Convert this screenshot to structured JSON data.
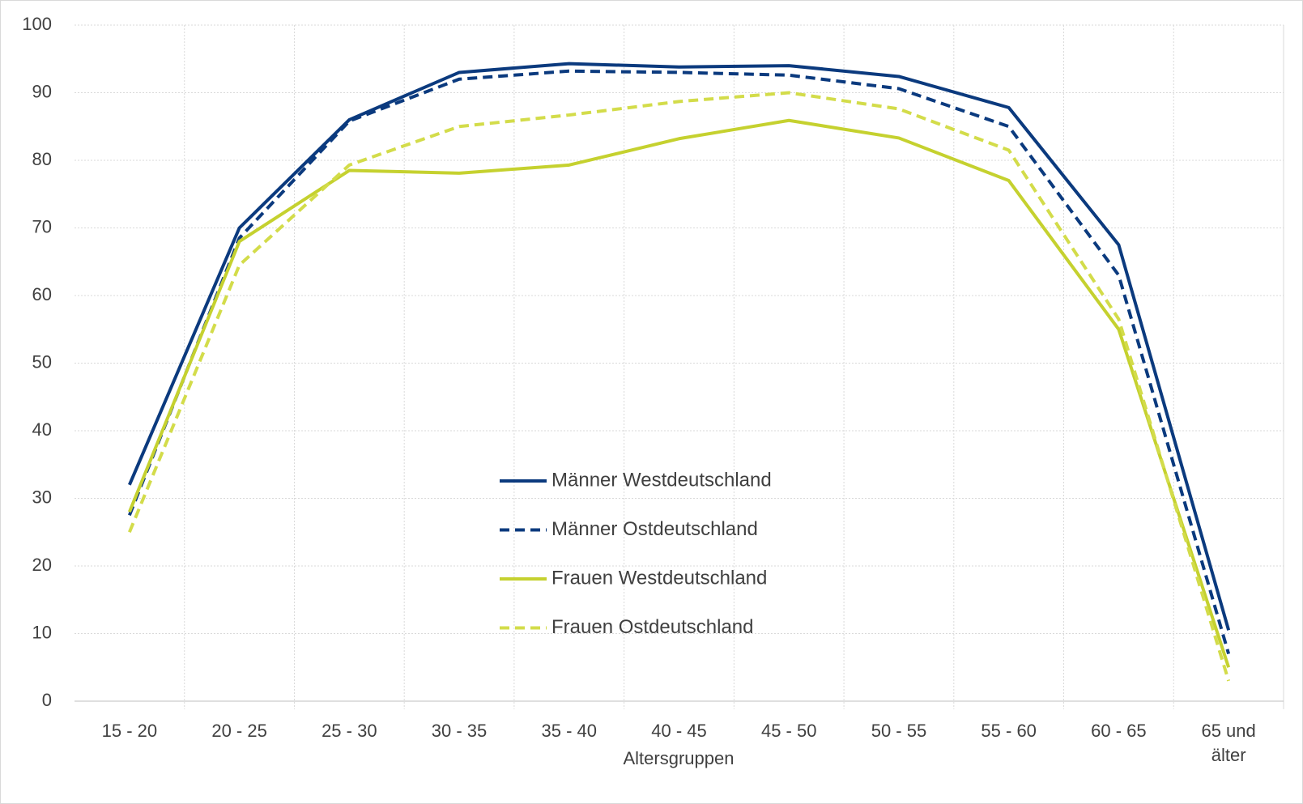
{
  "chart_data": {
    "type": "line",
    "x_label": "Altersgruppen",
    "categories": [
      "15 - 20",
      "20 - 25",
      "25 - 30",
      "30 - 35",
      "35 - 40",
      "40 - 45",
      "45 - 50",
      "50 - 55",
      "55 - 60",
      "60 - 65",
      "65 und älter"
    ],
    "series": [
      {
        "name": "Männer Westdeutschland",
        "color": "#0b3a7e",
        "linestyle": "solid",
        "values": [
          32,
          70,
          86,
          93,
          94.3,
          93.8,
          94,
          92.4,
          87.8,
          67.5,
          10.5
        ]
      },
      {
        "name": "Männer Ostdeutschland",
        "color": "#0b3a7e",
        "linestyle": "dashed",
        "values": [
          27.5,
          68.5,
          85.8,
          92,
          93.2,
          93,
          92.6,
          90.6,
          85,
          63,
          7
        ]
      },
      {
        "name": "Frauen Westdeutschland",
        "color": "#c5d12f",
        "linestyle": "solid",
        "values": [
          28,
          68,
          78.5,
          78.1,
          79.3,
          83.2,
          85.9,
          83.3,
          77,
          55,
          5
        ]
      },
      {
        "name": "Frauen Ostdeutschland",
        "color": "#d3dc4a",
        "linestyle": "dashed",
        "values": [
          25,
          64.5,
          79.3,
          85,
          86.7,
          88.7,
          90,
          87.6,
          81.5,
          56.5,
          3
        ]
      }
    ],
    "ylim": [
      0,
      100
    ],
    "yticks": [
      0,
      10,
      20,
      30,
      40,
      50,
      60,
      70,
      80,
      90,
      100
    ],
    "grid": true,
    "legend": "center"
  }
}
